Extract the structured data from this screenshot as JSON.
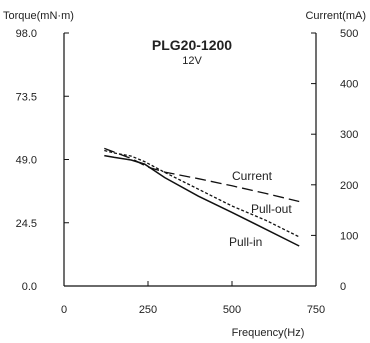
{
  "chart_data": {
    "type": "line",
    "title": "PLG20-1200",
    "subtitle": "12V",
    "xlabel": "Frequency(Hz)",
    "ylabel": "Torque(mN·m)",
    "y2label": "Current(mA)",
    "xlim": [
      0,
      750
    ],
    "ylim": [
      0,
      98
    ],
    "y2lim": [
      0,
      500
    ],
    "x_ticks": [
      0,
      250,
      500,
      750
    ],
    "y_ticks": [
      "0.0",
      "24.5",
      "49.0",
      "73.5",
      "98.0"
    ],
    "y2_ticks": [
      0,
      100,
      200,
      300,
      400,
      500
    ],
    "grid": false,
    "series": [
      {
        "name": "Pull-in",
        "axis": "left",
        "style": "solid",
        "x": [
          120,
          150,
          200,
          240,
          300,
          400,
          500,
          600,
          700
        ],
        "y": [
          50.5,
          49.8,
          48.8,
          47.2,
          42,
          34.8,
          28.5,
          22,
          15.5
        ]
      },
      {
        "name": "Pull-out",
        "axis": "left",
        "style": "dotted",
        "x": [
          120,
          150,
          200,
          240,
          300,
          400,
          500,
          600,
          700
        ],
        "y": [
          52.5,
          51.5,
          50.3,
          48.2,
          44,
          37.5,
          31,
          25.5,
          19
        ]
      },
      {
        "name": "Current",
        "axis": "right",
        "style": "dashed",
        "x": [
          120,
          200,
          250,
          300,
          400,
          500,
          600,
          700
        ],
        "y": [
          272,
          252,
          235,
          225,
          212,
          198,
          183,
          167
        ]
      }
    ]
  }
}
